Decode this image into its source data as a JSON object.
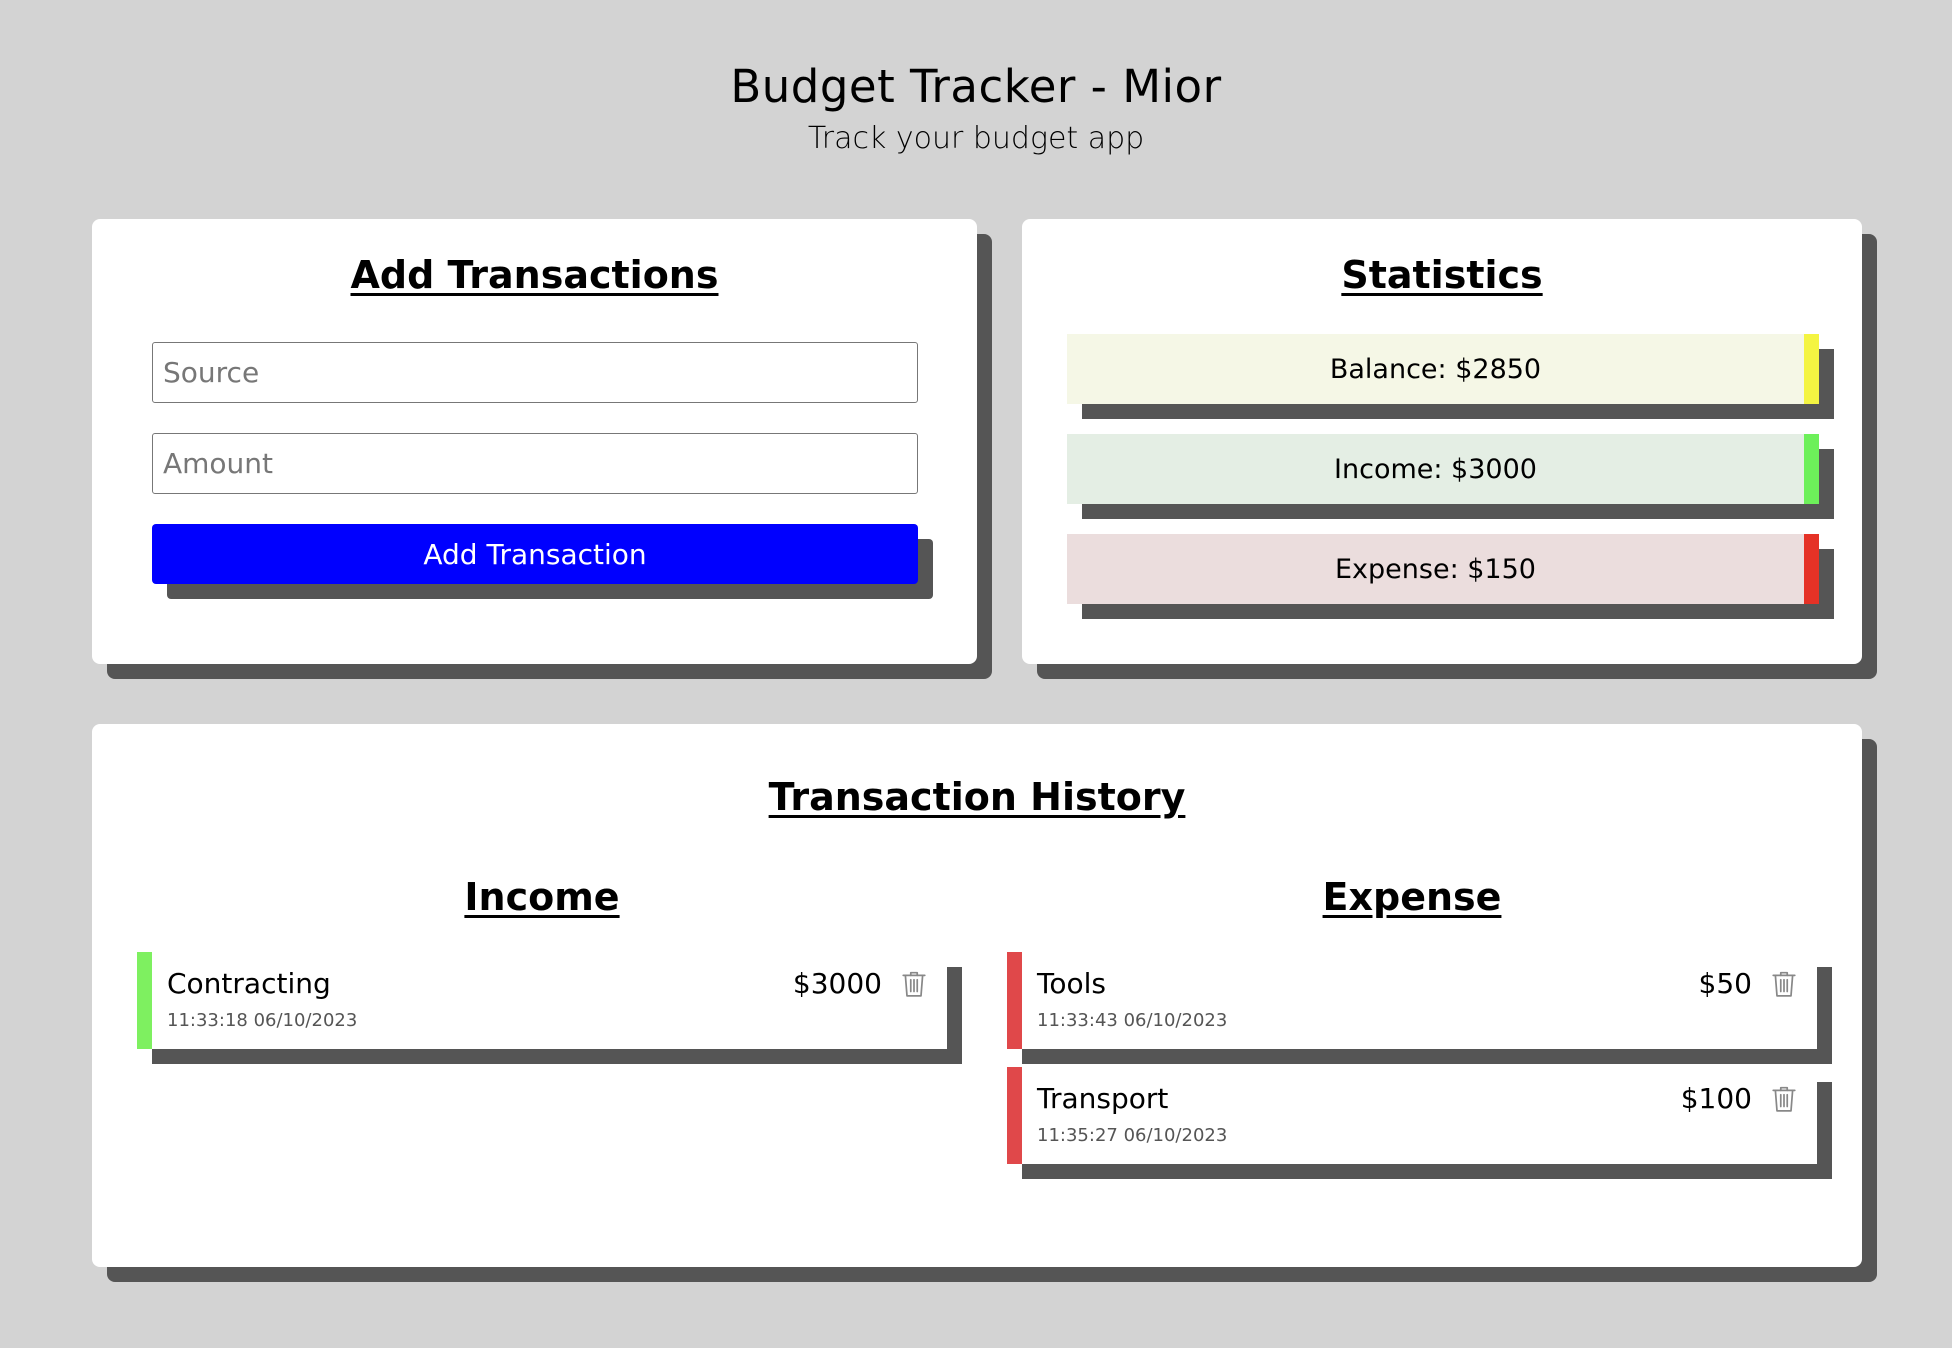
{
  "header": {
    "title": "Budget Tracker - Mior",
    "subtitle": "Track your budget app"
  },
  "add_card": {
    "title": "Add Transactions",
    "source_placeholder": "Source",
    "amount_placeholder": "Amount",
    "button_label": "Add Transaction",
    "button_color": "#0000ff"
  },
  "stats_card": {
    "title": "Statistics",
    "balance": "Balance: $2850",
    "income": "Income: $3000",
    "expense": "Expense: $150",
    "balance_color": "#f4f442",
    "income_color": "#6df05a",
    "expense_color": "#e53226"
  },
  "history": {
    "title": "Transaction History",
    "income_title": "Income",
    "expense_title": "Expense",
    "income_color": "#7ef060",
    "expense_color": "#e0484a",
    "income_items": [
      {
        "name": "Contracting",
        "time": "11:33:18 06/10/2023",
        "amount": "$3000"
      }
    ],
    "expense_items": [
      {
        "name": "Tools",
        "time": "11:33:43 06/10/2023",
        "amount": "$50"
      },
      {
        "name": "Transport",
        "time": "11:35:27 06/10/2023",
        "amount": "$100"
      }
    ],
    "delete_icon": "trash-icon"
  }
}
